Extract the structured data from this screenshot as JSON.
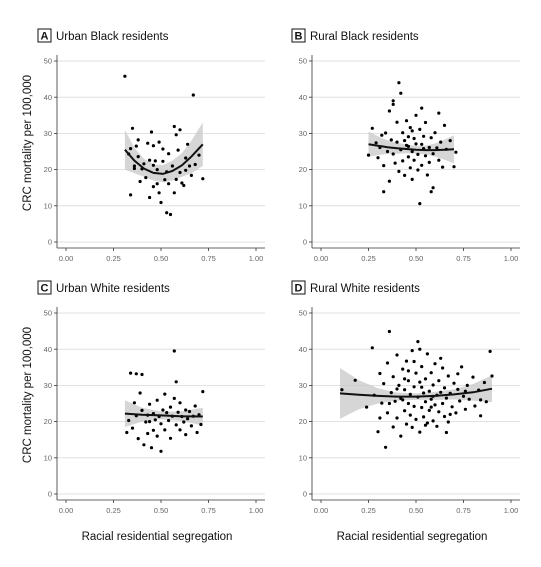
{
  "figure": {
    "xlabel": "Racial residential segregation",
    "ylabel": "CRC mortality per 100,000"
  },
  "chart_data": [
    {
      "type": "scatter",
      "letter": "A",
      "title": "Urban Black residents",
      "xlim": [
        0,
        1
      ],
      "ylim": [
        0,
        50
      ],
      "xticks": [
        0,
        0.25,
        0.5,
        0.75,
        1
      ],
      "xtick_labels": [
        "0.00",
        "0.25",
        "0.50",
        "0.75",
        "1.00"
      ],
      "yticks": [
        0,
        10,
        20,
        30,
        40,
        50
      ],
      "grid": true,
      "points": [
        [
          0.31,
          45.8
        ],
        [
          0.33,
          24.3
        ],
        [
          0.34,
          25.8
        ],
        [
          0.35,
          31.4
        ],
        [
          0.34,
          13.0
        ],
        [
          0.36,
          21.0
        ],
        [
          0.37,
          26.5
        ],
        [
          0.38,
          28.2
        ],
        [
          0.38,
          23.6
        ],
        [
          0.39,
          16.7
        ],
        [
          0.4,
          20.2
        ],
        [
          0.41,
          21.6
        ],
        [
          0.42,
          17.8
        ],
        [
          0.43,
          27.3
        ],
        [
          0.44,
          12.3
        ],
        [
          0.44,
          22.6
        ],
        [
          0.45,
          30.4
        ],
        [
          0.46,
          26.6
        ],
        [
          0.46,
          15.3
        ],
        [
          0.47,
          22.4
        ],
        [
          0.48,
          20.0
        ],
        [
          0.48,
          16.1
        ],
        [
          0.49,
          27.6
        ],
        [
          0.49,
          13.6
        ],
        [
          0.5,
          10.9
        ],
        [
          0.51,
          25.7
        ],
        [
          0.51,
          22.3
        ],
        [
          0.52,
          17.2
        ],
        [
          0.53,
          19.4
        ],
        [
          0.53,
          8.1
        ],
        [
          0.54,
          16.1
        ],
        [
          0.54,
          24.4
        ],
        [
          0.55,
          7.6
        ],
        [
          0.56,
          21.0
        ],
        [
          0.57,
          31.9
        ],
        [
          0.58,
          29.6
        ],
        [
          0.58,
          17.3
        ],
        [
          0.59,
          25.4
        ],
        [
          0.6,
          31.0
        ],
        [
          0.6,
          19.2
        ],
        [
          0.61,
          16.3
        ],
        [
          0.62,
          15.6
        ],
        [
          0.63,
          23.2
        ],
        [
          0.63,
          19.8
        ],
        [
          0.64,
          27.0
        ],
        [
          0.65,
          21.0
        ],
        [
          0.66,
          18.4
        ],
        [
          0.67,
          40.6
        ],
        [
          0.68,
          21.4
        ],
        [
          0.7,
          24.0
        ],
        [
          0.72,
          17.5
        ],
        [
          0.46,
          21.2
        ],
        [
          0.57,
          13.6
        ],
        [
          0.36,
          20.3
        ]
      ],
      "fit": {
        "x": [
          0.31,
          0.36,
          0.41,
          0.46,
          0.51,
          0.56,
          0.61,
          0.66,
          0.72
        ],
        "y": [
          25.5,
          22.5,
          20.3,
          19.1,
          18.8,
          19.6,
          21.2,
          23.6,
          27.0
        ]
      },
      "ci_lower": [
        20.0,
        19.0,
        18.0,
        17.0,
        16.5,
        17.0,
        18.0,
        19.0,
        21.0
      ],
      "ci_upper": [
        31.0,
        26.0,
        23.0,
        21.5,
        21.2,
        22.5,
        24.5,
        28.0,
        33.0
      ]
    },
    {
      "type": "scatter",
      "letter": "B",
      "title": "Rural Black residents",
      "xlim": [
        0,
        1
      ],
      "ylim": [
        0,
        50
      ],
      "xticks": [
        0,
        0.25,
        0.5,
        0.75,
        1
      ],
      "xtick_labels": [
        "0.00",
        "0.25",
        "0.50",
        "0.75",
        "1.00"
      ],
      "yticks": [
        0,
        10,
        20,
        30,
        40,
        50
      ],
      "grid": true,
      "points": [
        [
          0.25,
          24.0
        ],
        [
          0.27,
          31.4
        ],
        [
          0.29,
          27.4
        ],
        [
          0.3,
          23.3
        ],
        [
          0.31,
          26.1
        ],
        [
          0.32,
          29.5
        ],
        [
          0.33,
          21.1
        ],
        [
          0.34,
          30.1
        ],
        [
          0.35,
          25.0
        ],
        [
          0.36,
          36.2
        ],
        [
          0.36,
          16.8
        ],
        [
          0.37,
          28.2
        ],
        [
          0.38,
          24.3
        ],
        [
          0.38,
          38.0
        ],
        [
          0.39,
          21.8
        ],
        [
          0.4,
          33.1
        ],
        [
          0.4,
          27.6
        ],
        [
          0.41,
          19.5
        ],
        [
          0.41,
          44.0
        ],
        [
          0.42,
          25.5
        ],
        [
          0.43,
          30.2
        ],
        [
          0.43,
          22.4
        ],
        [
          0.44,
          28.0
        ],
        [
          0.44,
          18.4
        ],
        [
          0.45,
          26.7
        ],
        [
          0.45,
          33.5
        ],
        [
          0.46,
          23.5
        ],
        [
          0.46,
          29.1
        ],
        [
          0.47,
          20.5
        ],
        [
          0.47,
          31.6
        ],
        [
          0.48,
          25.0
        ],
        [
          0.48,
          17.3
        ],
        [
          0.49,
          28.6
        ],
        [
          0.49,
          22.6
        ],
        [
          0.5,
          27.1
        ],
        [
          0.5,
          35.0
        ],
        [
          0.51,
          19.9
        ],
        [
          0.51,
          24.2
        ],
        [
          0.52,
          31.1
        ],
        [
          0.52,
          10.6
        ],
        [
          0.53,
          27.0
        ],
        [
          0.53,
          21.2
        ],
        [
          0.54,
          25.8
        ],
        [
          0.54,
          29.2
        ],
        [
          0.55,
          23.8
        ],
        [
          0.55,
          33.0
        ],
        [
          0.56,
          18.5
        ],
        [
          0.57,
          26.1
        ],
        [
          0.57,
          22.0
        ],
        [
          0.58,
          28.8
        ],
        [
          0.59,
          24.4
        ],
        [
          0.59,
          15.0
        ],
        [
          0.6,
          30.2
        ],
        [
          0.61,
          26.0
        ],
        [
          0.62,
          22.6
        ],
        [
          0.62,
          35.6
        ],
        [
          0.63,
          27.6
        ],
        [
          0.64,
          20.7
        ],
        [
          0.65,
          32.2
        ],
        [
          0.66,
          25.6
        ],
        [
          0.68,
          28.0
        ],
        [
          0.7,
          20.8
        ],
        [
          0.71,
          24.8
        ],
        [
          0.33,
          13.9
        ],
        [
          0.38,
          39.0
        ],
        [
          0.42,
          41.1
        ],
        [
          0.48,
          30.7
        ],
        [
          0.53,
          37.0
        ],
        [
          0.58,
          13.9
        ],
        [
          0.46,
          26.4
        ]
      ],
      "fit": {
        "x": [
          0.25,
          0.3,
          0.35,
          0.4,
          0.45,
          0.5,
          0.55,
          0.6,
          0.65,
          0.7
        ],
        "y": [
          27.0,
          26.6,
          26.2,
          25.9,
          25.7,
          25.5,
          25.4,
          25.4,
          25.5,
          25.6
        ]
      },
      "ci_lower": [
        23.5,
        24.0,
        24.3,
        24.4,
        24.5,
        24.4,
        24.2,
        23.6,
        22.7,
        21.7
      ],
      "ci_upper": [
        30.5,
        29.2,
        28.1,
        27.4,
        26.9,
        26.6,
        26.6,
        27.2,
        28.3,
        29.5
      ]
    },
    {
      "type": "scatter",
      "letter": "C",
      "title": "Urban White residents",
      "xlim": [
        0,
        1
      ],
      "ylim": [
        0,
        50
      ],
      "xticks": [
        0,
        0.25,
        0.5,
        0.75,
        1
      ],
      "xtick_labels": [
        "0.00",
        "0.25",
        "0.50",
        "0.75",
        "1.00"
      ],
      "yticks": [
        0,
        10,
        20,
        30,
        40,
        50
      ],
      "grid": true,
      "points": [
        [
          0.32,
          17.0
        ],
        [
          0.33,
          20.3
        ],
        [
          0.34,
          33.4
        ],
        [
          0.35,
          18.2
        ],
        [
          0.36,
          25.2
        ],
        [
          0.37,
          33.2
        ],
        [
          0.37,
          21.6
        ],
        [
          0.38,
          15.3
        ],
        [
          0.39,
          27.9
        ],
        [
          0.4,
          23.1
        ],
        [
          0.4,
          33.0
        ],
        [
          0.41,
          13.6
        ],
        [
          0.42,
          19.9
        ],
        [
          0.43,
          21.8
        ],
        [
          0.43,
          16.7
        ],
        [
          0.44,
          24.8
        ],
        [
          0.45,
          12.8
        ],
        [
          0.46,
          22.2
        ],
        [
          0.46,
          17.6
        ],
        [
          0.47,
          20.5
        ],
        [
          0.48,
          25.9
        ],
        [
          0.48,
          16.0
        ],
        [
          0.49,
          21.4
        ],
        [
          0.5,
          11.8
        ],
        [
          0.5,
          19.4
        ],
        [
          0.51,
          23.2
        ],
        [
          0.52,
          17.7
        ],
        [
          0.52,
          27.6
        ],
        [
          0.53,
          22.5
        ],
        [
          0.54,
          20.3
        ],
        [
          0.55,
          24.0
        ],
        [
          0.55,
          15.4
        ],
        [
          0.56,
          21.5
        ],
        [
          0.57,
          39.5
        ],
        [
          0.57,
          26.4
        ],
        [
          0.58,
          19.1
        ],
        [
          0.59,
          22.6
        ],
        [
          0.6,
          17.7
        ],
        [
          0.6,
          25.2
        ],
        [
          0.61,
          21.4
        ],
        [
          0.62,
          19.9
        ],
        [
          0.63,
          23.2
        ],
        [
          0.63,
          16.4
        ],
        [
          0.64,
          20.8
        ],
        [
          0.65,
          22.8
        ],
        [
          0.66,
          18.8
        ],
        [
          0.67,
          21.5
        ],
        [
          0.68,
          24.3
        ],
        [
          0.69,
          17.0
        ],
        [
          0.7,
          21.9
        ],
        [
          0.72,
          28.3
        ],
        [
          0.71,
          19.2
        ],
        [
          0.58,
          31.0
        ],
        [
          0.44,
          20.0
        ]
      ],
      "fit": {
        "x": [
          0.31,
          0.4,
          0.5,
          0.6,
          0.72
        ],
        "y": [
          22.2,
          21.9,
          21.7,
          21.5,
          21.4
        ]
      },
      "ci_lower": [
        18.5,
        20.0,
        20.6,
        20.2,
        19.0
      ],
      "ci_upper": [
        25.9,
        23.8,
        22.8,
        22.8,
        23.8
      ]
    },
    {
      "type": "scatter",
      "letter": "D",
      "title": "Rural White residents",
      "xlim": [
        0,
        1
      ],
      "ylim": [
        0,
        50
      ],
      "xticks": [
        0,
        0.25,
        0.5,
        0.75,
        1
      ],
      "xtick_labels": [
        "0.00",
        "0.25",
        "0.50",
        "0.75",
        "1.00"
      ],
      "yticks": [
        0,
        10,
        20,
        30,
        40,
        50
      ],
      "grid": true,
      "points": [
        [
          0.11,
          28.8
        ],
        [
          0.18,
          31.4
        ],
        [
          0.24,
          24.0
        ],
        [
          0.27,
          40.4
        ],
        [
          0.28,
          27.3
        ],
        [
          0.3,
          17.2
        ],
        [
          0.31,
          33.3
        ],
        [
          0.32,
          25.1
        ],
        [
          0.33,
          30.5
        ],
        [
          0.34,
          12.9
        ],
        [
          0.35,
          36.2
        ],
        [
          0.35,
          22.4
        ],
        [
          0.36,
          44.9
        ],
        [
          0.37,
          28.0
        ],
        [
          0.38,
          18.5
        ],
        [
          0.38,
          32.4
        ],
        [
          0.39,
          25.6
        ],
        [
          0.4,
          38.4
        ],
        [
          0.4,
          21.0
        ],
        [
          0.41,
          30.0
        ],
        [
          0.42,
          26.4
        ],
        [
          0.42,
          16.0
        ],
        [
          0.43,
          34.5
        ],
        [
          0.44,
          23.0
        ],
        [
          0.44,
          28.8
        ],
        [
          0.45,
          19.3
        ],
        [
          0.45,
          36.7
        ],
        [
          0.46,
          25.0
        ],
        [
          0.46,
          31.3
        ],
        [
          0.47,
          21.8
        ],
        [
          0.47,
          27.5
        ],
        [
          0.48,
          39.6
        ],
        [
          0.48,
          18.4
        ],
        [
          0.49,
          29.6
        ],
        [
          0.49,
          24.2
        ],
        [
          0.5,
          33.4
        ],
        [
          0.5,
          20.6
        ],
        [
          0.51,
          42.1
        ],
        [
          0.51,
          26.8
        ],
        [
          0.52,
          30.9
        ],
        [
          0.52,
          17.1
        ],
        [
          0.53,
          23.9
        ],
        [
          0.53,
          35.2
        ],
        [
          0.54,
          27.9
        ],
        [
          0.54,
          21.3
        ],
        [
          0.55,
          31.8
        ],
        [
          0.55,
          25.5
        ],
        [
          0.56,
          38.7
        ],
        [
          0.56,
          19.6
        ],
        [
          0.57,
          28.4
        ],
        [
          0.57,
          23.1
        ],
        [
          0.58,
          33.5
        ],
        [
          0.58,
          26.2
        ],
        [
          0.59,
          20.2
        ],
        [
          0.59,
          30.1
        ],
        [
          0.6,
          24.6
        ],
        [
          0.6,
          36.0
        ],
        [
          0.61,
          27.3
        ],
        [
          0.61,
          18.7
        ],
        [
          0.62,
          31.3
        ],
        [
          0.62,
          22.7
        ],
        [
          0.63,
          28.1
        ],
        [
          0.64,
          25.0
        ],
        [
          0.64,
          34.8
        ],
        [
          0.65,
          21.4
        ],
        [
          0.65,
          29.3
        ],
        [
          0.66,
          26.5
        ],
        [
          0.67,
          32.6
        ],
        [
          0.67,
          19.9
        ],
        [
          0.68,
          27.8
        ],
        [
          0.69,
          24.1
        ],
        [
          0.7,
          30.6
        ],
        [
          0.71,
          22.4
        ],
        [
          0.72,
          28.9
        ],
        [
          0.73,
          25.7
        ],
        [
          0.74,
          35.1
        ],
        [
          0.75,
          27.0
        ],
        [
          0.76,
          23.4
        ],
        [
          0.77,
          30.0
        ],
        [
          0.78,
          26.2
        ],
        [
          0.8,
          32.3
        ],
        [
          0.81,
          24.3
        ],
        [
          0.83,
          28.7
        ],
        [
          0.84,
          21.6
        ],
        [
          0.86,
          30.8
        ],
        [
          0.87,
          25.5
        ],
        [
          0.89,
          39.4
        ],
        [
          0.9,
          32.6
        ],
        [
          0.43,
          26.0
        ],
        [
          0.53,
          29.5
        ],
        [
          0.58,
          24.0
        ],
        [
          0.63,
          37.5
        ],
        [
          0.46,
          34.0
        ],
        [
          0.55,
          19.0
        ],
        [
          0.49,
          36.6
        ],
        [
          0.68,
          22.0
        ],
        [
          0.4,
          29.0
        ],
        [
          0.72,
          33.2
        ],
        [
          0.36,
          25.0
        ],
        [
          0.76,
          28.4
        ],
        [
          0.84,
          26.0
        ],
        [
          0.31,
          21.0
        ],
        [
          0.52,
          40.0
        ],
        [
          0.66,
          17.0
        ],
        [
          0.44,
          31.8
        ],
        [
          0.59,
          27.0
        ]
      ],
      "fit": {
        "x": [
          0.1,
          0.2,
          0.3,
          0.4,
          0.5,
          0.6,
          0.7,
          0.8,
          0.9
        ],
        "y": [
          27.8,
          27.4,
          27.1,
          26.9,
          26.9,
          27.1,
          27.5,
          28.1,
          29.1
        ]
      },
      "ci_lower": [
        20.8,
        23.4,
        25.0,
        25.8,
        26.0,
        26.0,
        26.1,
        25.8,
        25.4
      ],
      "ci_upper": [
        34.8,
        31.4,
        29.2,
        28.0,
        27.8,
        28.2,
        28.9,
        30.4,
        32.8
      ]
    }
  ]
}
